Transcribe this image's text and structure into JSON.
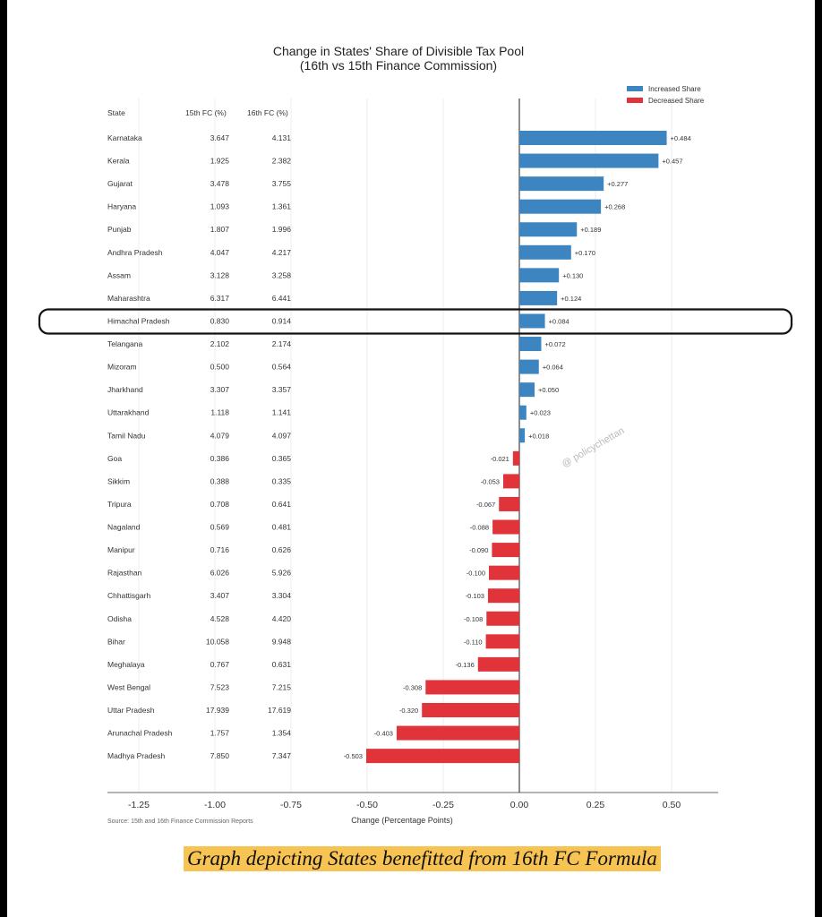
{
  "chart_data": {
    "type": "bar",
    "orientation": "horizontal",
    "title": "Change in States' Share of Divisible Tax Pool",
    "subtitle": "(16th vs 15th Finance Commission)",
    "xlabel": "Change (Percentage Points)",
    "xlim": [
      -1.25,
      0.6
    ],
    "xticks": [
      "-1.25",
      "-1.00",
      "-0.75",
      "-0.50",
      "-0.25",
      "0.00",
      "0.25",
      "0.50"
    ],
    "grid": "vertical",
    "legend_position": "top-right",
    "legend": [
      {
        "label": "Increased Share",
        "color": "#3d85c0"
      },
      {
        "label": "Decreased Share",
        "color": "#e0343a"
      }
    ],
    "table_headers": [
      "State",
      "15th FC (%)",
      "16th FC (%)"
    ],
    "highlighted_row": "Himachal Pradesh",
    "source": "Source: 15th and 16th Finance Commission Reports",
    "rows": [
      {
        "state": "Karnataka",
        "fc15": "3.647",
        "fc16": "4.131",
        "change": 0.484,
        "label": "+0.484"
      },
      {
        "state": "Kerala",
        "fc15": "1.925",
        "fc16": "2.382",
        "change": 0.457,
        "label": "+0.457"
      },
      {
        "state": "Gujarat",
        "fc15": "3.478",
        "fc16": "3.755",
        "change": 0.277,
        "label": "+0.277"
      },
      {
        "state": "Haryana",
        "fc15": "1.093",
        "fc16": "1.361",
        "change": 0.268,
        "label": "+0.268"
      },
      {
        "state": "Punjab",
        "fc15": "1.807",
        "fc16": "1.996",
        "change": 0.189,
        "label": "+0.189"
      },
      {
        "state": "Andhra Pradesh",
        "fc15": "4.047",
        "fc16": "4.217",
        "change": 0.17,
        "label": "+0.170"
      },
      {
        "state": "Assam",
        "fc15": "3.128",
        "fc16": "3.258",
        "change": 0.13,
        "label": "+0.130"
      },
      {
        "state": "Maharashtra",
        "fc15": "6.317",
        "fc16": "6.441",
        "change": 0.124,
        "label": "+0.124"
      },
      {
        "state": "Himachal Pradesh",
        "fc15": "0.830",
        "fc16": "0.914",
        "change": 0.084,
        "label": "+0.084"
      },
      {
        "state": "Telangana",
        "fc15": "2.102",
        "fc16": "2.174",
        "change": 0.072,
        "label": "+0.072"
      },
      {
        "state": "Mizoram",
        "fc15": "0.500",
        "fc16": "0.564",
        "change": 0.064,
        "label": "+0.064"
      },
      {
        "state": "Jharkhand",
        "fc15": "3.307",
        "fc16": "3.357",
        "change": 0.05,
        "label": "+0.050"
      },
      {
        "state": "Uttarakhand",
        "fc15": "1.118",
        "fc16": "1.141",
        "change": 0.023,
        "label": "+0.023"
      },
      {
        "state": "Tamil Nadu",
        "fc15": "4.079",
        "fc16": "4.097",
        "change": 0.018,
        "label": "+0.018"
      },
      {
        "state": "Goa",
        "fc15": "0.386",
        "fc16": "0.365",
        "change": -0.021,
        "label": "-0.021"
      },
      {
        "state": "Sikkim",
        "fc15": "0.388",
        "fc16": "0.335",
        "change": -0.053,
        "label": "-0.053"
      },
      {
        "state": "Tripura",
        "fc15": "0.708",
        "fc16": "0.641",
        "change": -0.067,
        "label": "-0.067"
      },
      {
        "state": "Nagaland",
        "fc15": "0.569",
        "fc16": "0.481",
        "change": -0.088,
        "label": "-0.088"
      },
      {
        "state": "Manipur",
        "fc15": "0.716",
        "fc16": "0.626",
        "change": -0.09,
        "label": "-0.090"
      },
      {
        "state": "Rajasthan",
        "fc15": "6.026",
        "fc16": "5.926",
        "change": -0.1,
        "label": "-0.100"
      },
      {
        "state": "Chhattisgarh",
        "fc15": "3.407",
        "fc16": "3.304",
        "change": -0.103,
        "label": "-0.103"
      },
      {
        "state": "Odisha",
        "fc15": "4.528",
        "fc16": "4.420",
        "change": -0.108,
        "label": "-0.108"
      },
      {
        "state": "Bihar",
        "fc15": "10.058",
        "fc16": "9.948",
        "change": -0.11,
        "label": "-0.110"
      },
      {
        "state": "Meghalaya",
        "fc15": "0.767",
        "fc16": "0.631",
        "change": -0.136,
        "label": "-0.136"
      },
      {
        "state": "West Bengal",
        "fc15": "7.523",
        "fc16": "7.215",
        "change": -0.308,
        "label": "-0.308"
      },
      {
        "state": "Uttar Pradesh",
        "fc15": "17.939",
        "fc16": "17.619",
        "change": -0.32,
        "label": "-0.320"
      },
      {
        "state": "Arunachal Pradesh",
        "fc15": "1.757",
        "fc16": "1.354",
        "change": -0.403,
        "label": "-0.403"
      },
      {
        "state": "Madhya Pradesh",
        "fc15": "7.850",
        "fc16": "7.347",
        "change": -0.503,
        "label": "-0.503"
      }
    ]
  },
  "watermark": "@ policychettan",
  "caption": "Graph depicting States benefitted from 16th FC Formula"
}
